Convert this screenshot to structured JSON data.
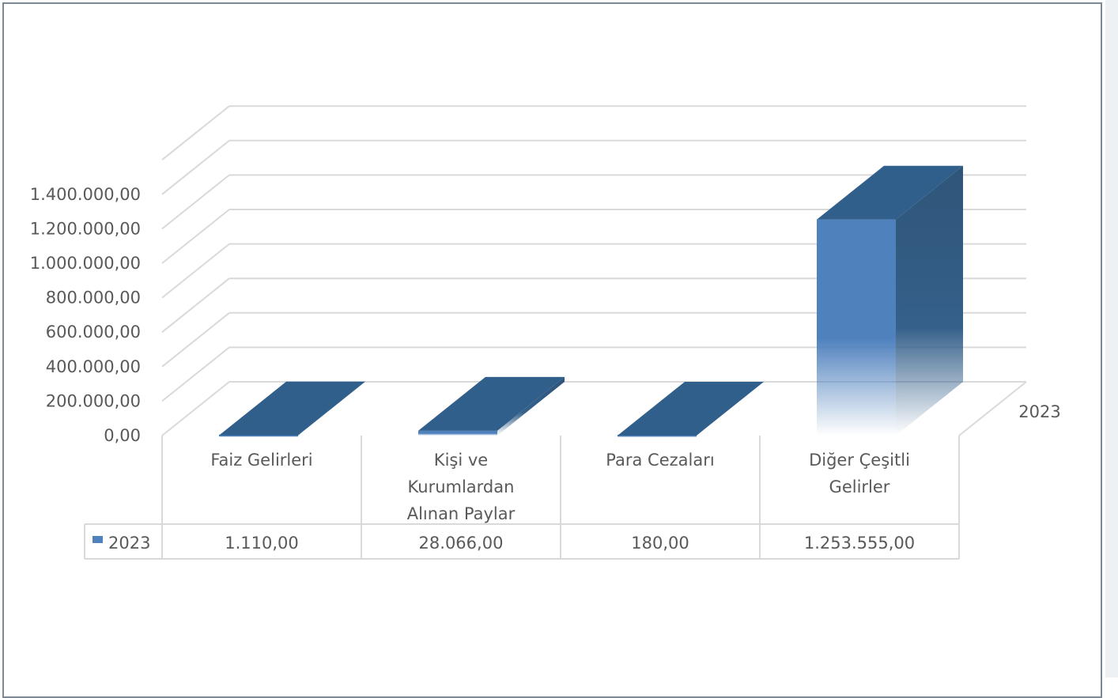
{
  "chart_data": {
    "type": "bar",
    "categories": [
      "Faiz Gelirleri",
      "Kişi ve Kurumlardan Alınan Paylar",
      "Para Cezaları",
      "Diğer Çeşitli Gelirler"
    ],
    "category_lines": [
      [
        "Faiz Gelirleri"
      ],
      [
        "Kişi ve",
        "Kurumlardan",
        "Alınan Paylar"
      ],
      [
        "Para Cezaları"
      ],
      [
        "Diğer Çeşitli",
        "Gelirler"
      ]
    ],
    "series": [
      {
        "name": "2023",
        "values": [
          1110,
          28066,
          180,
          1253555
        ]
      }
    ],
    "value_labels": [
      "1.110,00",
      "28.066,00",
      "180,00",
      "1.253.555,00"
    ],
    "yticks": [
      "0,00",
      "200.000,00",
      "400.000,00",
      "600.000,00",
      "800.000,00",
      "1.000.000,00",
      "1.200.000,00",
      "1.400.000,00"
    ],
    "ylim": [
      0,
      1400000
    ],
    "depth_axis_label": "2023",
    "legend_label": "2023",
    "grid": true,
    "colors": {
      "front": "#4f81bd",
      "top": "#2f5f8a",
      "side": "#35608a",
      "grid": "#d9d9d9",
      "text": "#595959"
    }
  }
}
